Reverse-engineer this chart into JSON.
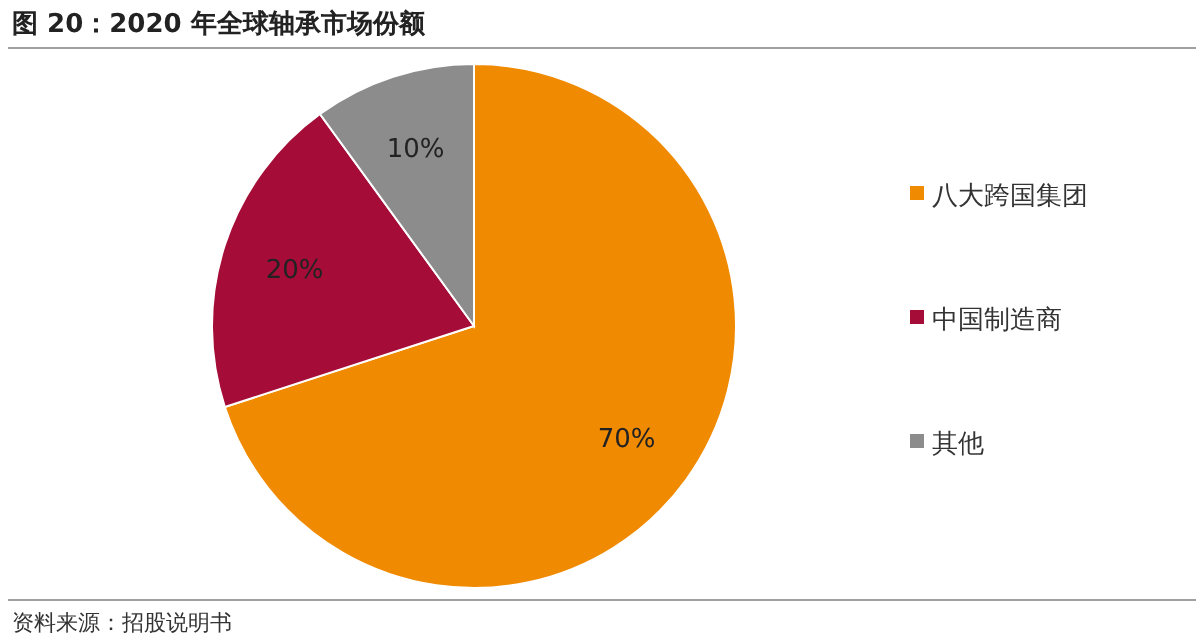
{
  "chart_data": {
    "type": "pie",
    "title": "图 20：2020 年全球轴承市场份额",
    "categories": [
      "八大跨国集团",
      "中国制造商",
      "其他"
    ],
    "values": [
      70,
      20,
      10
    ],
    "colors": [
      "#f08a00",
      "#a50d38",
      "#8c8c8c"
    ],
    "value_labels": [
      "70%",
      "20%",
      "10%"
    ],
    "legend": "right",
    "annotations": [
      "资料来源：招股说明书"
    ]
  }
}
